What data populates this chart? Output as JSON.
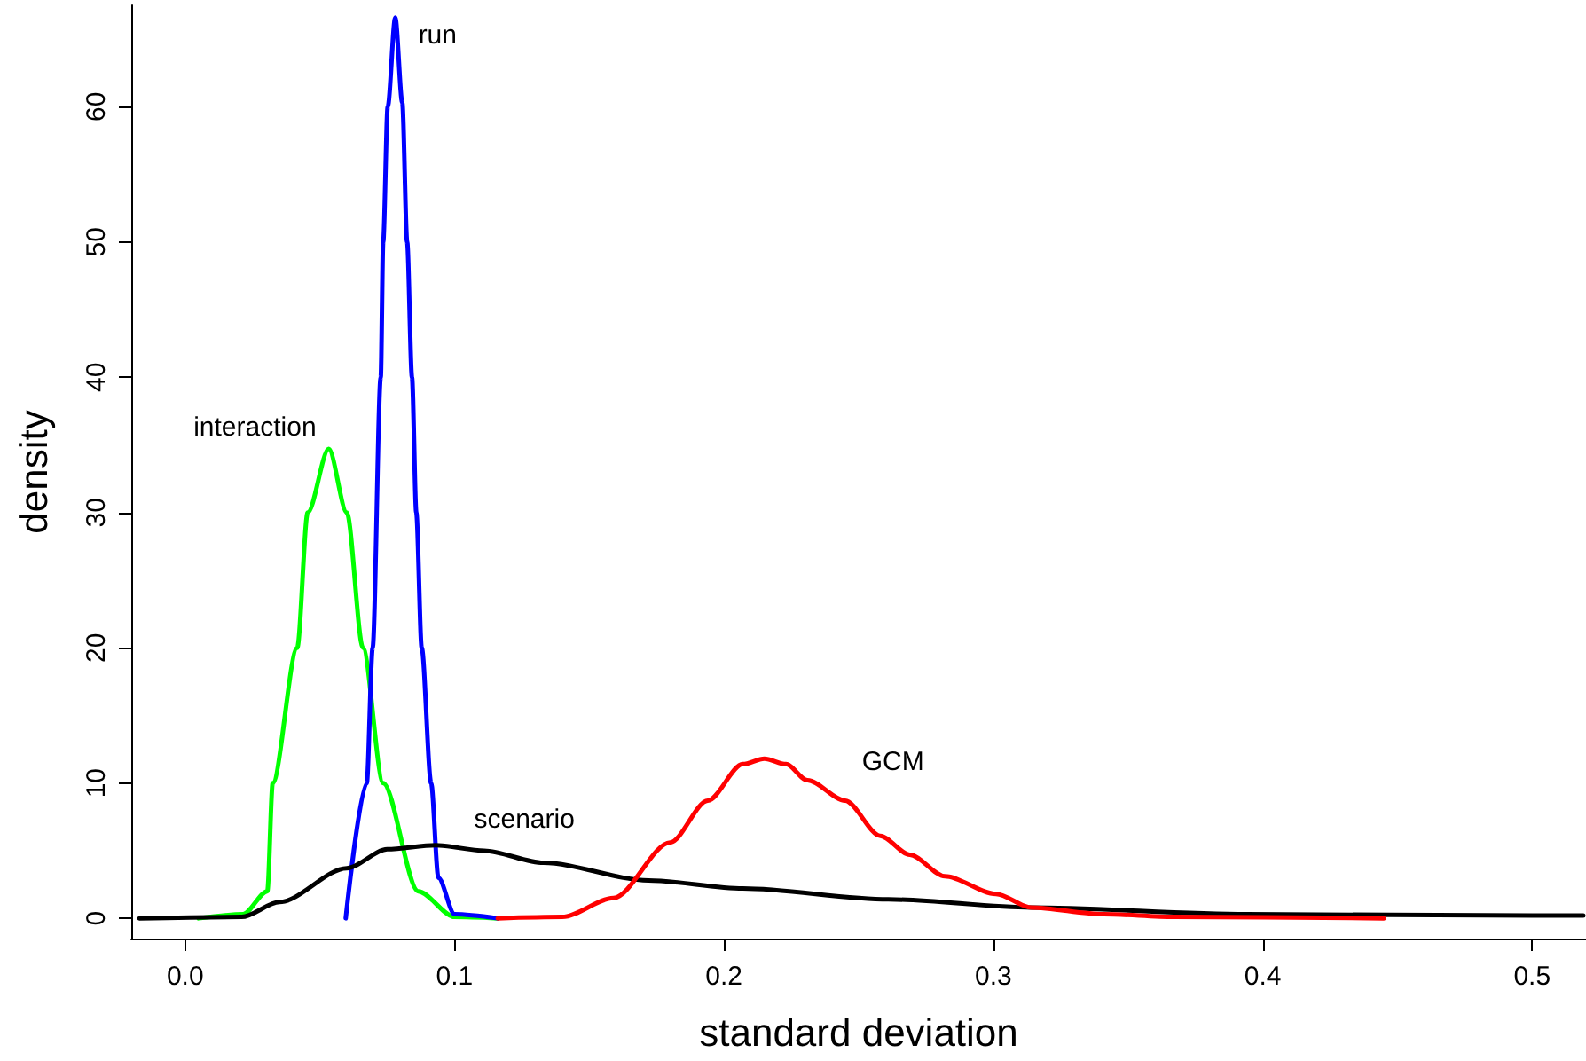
{
  "chart_data": {
    "type": "line",
    "xlabel": "standard deviation",
    "ylabel": "density",
    "xlim": [
      -0.02,
      0.52
    ],
    "xticks": [
      {
        "value": 0,
        "label": "0.0"
      },
      {
        "value": 0.1,
        "label": "0.1"
      },
      {
        "value": 0.2,
        "label": "0.2"
      },
      {
        "value": 0.3,
        "label": "0.3"
      },
      {
        "value": 0.4,
        "label": "0.4"
      },
      {
        "value": 0.5,
        "label": "0.5"
      }
    ],
    "ylim": [
      -1.5,
      67.5
    ],
    "yticks": [
      0,
      10,
      20,
      30,
      40,
      50,
      60
    ],
    "grid": false,
    "legend": false,
    "marker": "none",
    "line_style": "solid",
    "series": [
      {
        "name": "interaction",
        "color": "#00ff00",
        "x": [
          0.005,
          0.0215,
          0.0305,
          0.0325,
          0.0416,
          0.0455,
          0.0533,
          0.06,
          0.066,
          0.0735,
          0.0865,
          0.1,
          0.116
        ],
        "values": [
          0,
          0.3,
          2,
          10,
          20,
          30,
          34.7,
          30,
          20,
          10,
          2,
          0.1,
          0
        ]
      },
      {
        "name": "run",
        "color": "#0000ff",
        "x": [
          0.0596,
          0.0674,
          0.0696,
          0.0726,
          0.0735,
          0.0752,
          0.078,
          0.0806,
          0.0824,
          0.0842,
          0.0858,
          0.0878,
          0.0913,
          0.094,
          0.1,
          0.116
        ],
        "values": [
          0,
          10,
          20,
          40,
          50,
          60,
          66.6,
          60.3,
          50,
          40,
          30,
          20,
          10,
          3,
          0.3,
          0
        ]
      },
      {
        "name": "scenario",
        "color": "#000000",
        "x": [
          -0.017,
          0.021,
          0.035,
          0.06,
          0.075,
          0.093,
          0.111,
          0.133,
          0.172,
          0.207,
          0.261,
          0.314,
          0.394,
          0.5,
          0.519
        ],
        "values": [
          0,
          0.1,
          1.2,
          3.7,
          5.1,
          5.4,
          5.0,
          4.1,
          2.8,
          2.2,
          1.4,
          0.8,
          0.3,
          0.2,
          0.2
        ]
      },
      {
        "name": "GCM",
        "color": "#ff0000",
        "x": [
          0.116,
          0.14,
          0.159,
          0.18,
          0.194,
          0.207,
          0.215,
          0.223,
          0.231,
          0.245,
          0.258,
          0.269,
          0.282,
          0.301,
          0.314,
          0.341,
          0.367,
          0.445
        ],
        "values": [
          0,
          0.1,
          1.5,
          5.6,
          8.7,
          11.4,
          11.8,
          11.4,
          10.2,
          8.7,
          6.1,
          4.7,
          3.1,
          1.8,
          0.8,
          0.3,
          0.1,
          0
        ]
      }
    ]
  }
}
